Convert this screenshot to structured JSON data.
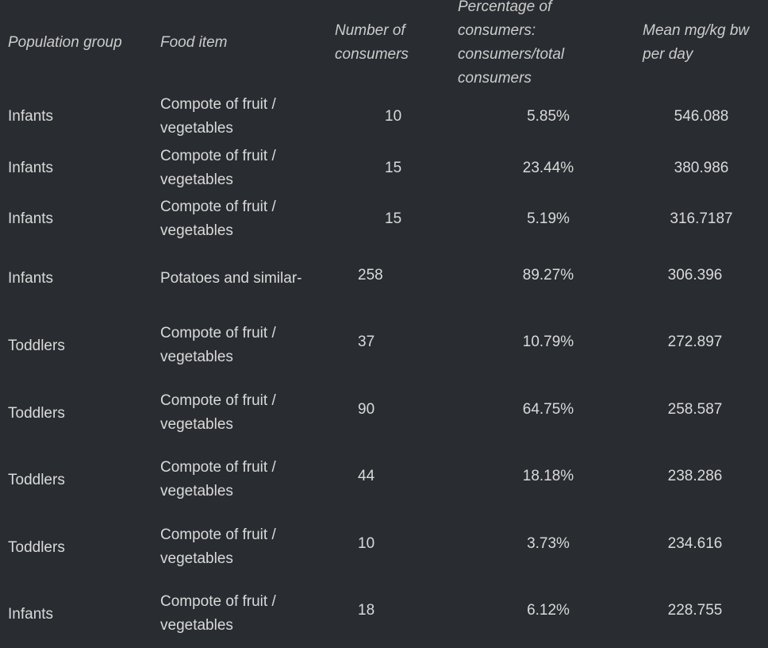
{
  "table": {
    "headers": {
      "population_group": "Population group",
      "food_item": "Food item",
      "number_of_consumers": "Number of consumers",
      "percentage": "Percentage of consumers: consumers/total consumers",
      "mean": "Mean mg/kg bw per day"
    },
    "rows": [
      {
        "population_group": "Infants",
        "food_item": "Compote of fruit / vegetables",
        "number_of_consumers": "10",
        "percentage": "5.85%",
        "mean": "546.088"
      },
      {
        "population_group": "Infants",
        "food_item": "Compote of fruit / vegetables",
        "number_of_consumers": "15",
        "percentage": "23.44%",
        "mean": "380.986"
      },
      {
        "population_group": "Infants",
        "food_item": "Compote of fruit / vegetables",
        "number_of_consumers": "15",
        "percentage": "5.19%",
        "mean": "316.7187"
      },
      {
        "population_group": "Infants",
        "food_item": "Potatoes and similar-",
        "number_of_consumers": "258",
        "percentage": "89.27%",
        "mean": "306.396"
      },
      {
        "population_group": "Toddlers",
        "food_item": "Compote of fruit / vegetables",
        "number_of_consumers": "37",
        "percentage": "10.79%",
        "mean": "272.897"
      },
      {
        "population_group": "Toddlers",
        "food_item": "Compote of fruit / vegetables",
        "number_of_consumers": "90",
        "percentage": "64.75%",
        "mean": "258.587"
      },
      {
        "population_group": "Toddlers",
        "food_item": "Compote of fruit / vegetables",
        "number_of_consumers": "44",
        "percentage": "18.18%",
        "mean": "238.286"
      },
      {
        "population_group": "Toddlers",
        "food_item": "Compote of fruit / vegetables",
        "number_of_consumers": "10",
        "percentage": "3.73%",
        "mean": "234.616"
      },
      {
        "population_group": "Infants",
        "food_item": "Compote of fruit / vegetables",
        "number_of_consumers": "18",
        "percentage": "6.12%",
        "mean": "228.755"
      }
    ]
  }
}
